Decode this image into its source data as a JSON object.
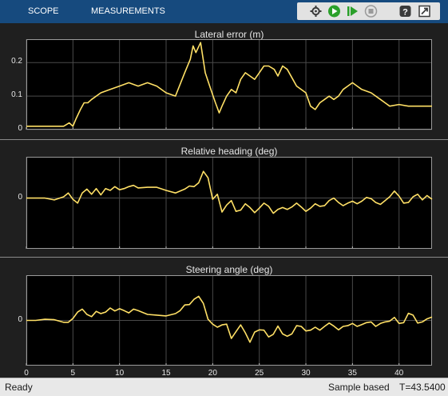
{
  "tabs": [
    "SCOPE",
    "MEASUREMENTS"
  ],
  "toolbar": {
    "buttons": [
      "settings-icon",
      "run-icon",
      "step-forward-icon",
      "stop-icon",
      "help-icon",
      "undock-icon"
    ],
    "help_glyph": "?"
  },
  "status": {
    "ready": "Ready",
    "mode": "Sample based",
    "time": "T=43.5400"
  },
  "colors": {
    "trace": "#ffe066",
    "axes_bg": "#000000",
    "grid": "#4a4a4a",
    "header": "#164a7e"
  },
  "chart_data": [
    {
      "type": "line",
      "title": "Lateral error (m)",
      "xlim": [
        0,
        43.54
      ],
      "ylim": [
        0,
        0.27
      ],
      "xticks": [
        0,
        5,
        10,
        15,
        20,
        25,
        30,
        35,
        40
      ],
      "yticks": [
        0,
        0.1,
        0.2
      ],
      "ytick_labels": [
        "0",
        "0.1",
        "0.2"
      ],
      "series": [
        {
          "x": [
            0,
            2,
            4,
            4.6,
            5,
            5.3,
            5.8,
            6.2,
            6.6,
            7,
            8,
            9,
            10,
            11,
            12,
            13,
            14,
            15,
            16,
            17,
            17.6,
            17.9,
            18.2,
            18.7,
            19.2,
            19.8,
            20.3,
            20.7,
            21,
            21.5,
            22,
            22.5,
            23,
            23.5,
            24,
            24.5,
            25,
            25.5,
            26,
            26.6,
            27,
            27.5,
            28,
            28.6,
            29,
            30,
            30.5,
            31,
            31.5,
            32,
            32.5,
            33,
            33.5,
            34,
            34.5,
            35,
            35.5,
            36,
            37,
            38,
            38.5,
            39,
            40,
            41,
            42,
            43.54
          ],
          "y": [
            0.01,
            0.01,
            0.01,
            0.02,
            0.01,
            0.03,
            0.06,
            0.08,
            0.08,
            0.09,
            0.11,
            0.12,
            0.13,
            0.14,
            0.13,
            0.14,
            0.13,
            0.11,
            0.1,
            0.17,
            0.21,
            0.25,
            0.23,
            0.26,
            0.17,
            0.12,
            0.08,
            0.05,
            0.07,
            0.1,
            0.12,
            0.11,
            0.15,
            0.17,
            0.16,
            0.15,
            0.17,
            0.19,
            0.19,
            0.18,
            0.16,
            0.19,
            0.18,
            0.15,
            0.13,
            0.11,
            0.07,
            0.06,
            0.08,
            0.09,
            0.1,
            0.09,
            0.1,
            0.12,
            0.13,
            0.14,
            0.13,
            0.12,
            0.11,
            0.09,
            0.08,
            0.07,
            0.075,
            0.07,
            0.07,
            0.07
          ]
        }
      ]
    },
    {
      "type": "line",
      "title": "Relative heading (deg)",
      "xlim": [
        0,
        43.54
      ],
      "ylim": [
        -8,
        6.5
      ],
      "xticks": [
        0,
        5,
        10,
        15,
        20,
        25,
        30,
        35,
        40
      ],
      "yticks": [
        0
      ],
      "ytick_labels": [
        "0"
      ],
      "series": [
        {
          "x": [
            0,
            1,
            2,
            3,
            4,
            4.5,
            5,
            5.5,
            6,
            6.5,
            7,
            7.5,
            8,
            8.5,
            9,
            9.5,
            10,
            10.5,
            11,
            11.5,
            12,
            13,
            14,
            15,
            16,
            17,
            17.5,
            18,
            18.5,
            19,
            19.5,
            20,
            20.5,
            21,
            21.5,
            22,
            22.5,
            23,
            23.5,
            24,
            24.5,
            25,
            25.5,
            26,
            26.5,
            27,
            27.5,
            28,
            28.5,
            29,
            29.5,
            30,
            30.5,
            31,
            31.5,
            32,
            32.5,
            33,
            33.5,
            34,
            34.5,
            35,
            35.5,
            36,
            36.5,
            37,
            37.5,
            38,
            38.5,
            39,
            39.5,
            40,
            40.5,
            41,
            41.5,
            42,
            42.5,
            43,
            43.54
          ],
          "y": [
            0,
            0,
            0,
            -0.3,
            0.2,
            0.8,
            -0.2,
            -0.8,
            0.8,
            1.4,
            0.6,
            1.5,
            0.5,
            1.5,
            1.2,
            1.8,
            1.3,
            1.5,
            1.8,
            2,
            1.6,
            1.7,
            1.7,
            1.2,
            0.8,
            1.4,
            1.9,
            1.8,
            2.4,
            4.2,
            3.2,
            -0.2,
            0.6,
            -2.2,
            -1.1,
            -0.4,
            -2.1,
            -1.9,
            -0.9,
            -1.5,
            -2.3,
            -1.6,
            -0.8,
            -1.3,
            -2.4,
            -1.8,
            -1.5,
            -1.8,
            -1.4,
            -0.8,
            -1.4,
            -2.1,
            -1.6,
            -0.9,
            -1.3,
            -1.2,
            -0.4,
            0,
            -0.7,
            -1.2,
            -0.8,
            -0.5,
            -0.9,
            -0.5,
            0.1,
            -0.1,
            -0.7,
            -1,
            -0.4,
            0.2,
            1.1,
            0.3,
            -0.8,
            -0.7,
            0.2,
            0.6,
            -0.3,
            0.4,
            -0.2
          ]
        }
      ]
    },
    {
      "type": "line",
      "title": "Steering angle (deg)",
      "xlim": [
        0,
        43.54
      ],
      "ylim": [
        -12,
        12
      ],
      "xticks": [
        0,
        5,
        10,
        15,
        20,
        25,
        30,
        35,
        40
      ],
      "xtick_labels": [
        "0",
        "5",
        "10",
        "15",
        "20",
        "25",
        "30",
        "35",
        "40"
      ],
      "yticks": [
        0
      ],
      "ytick_labels": [
        "0"
      ],
      "series": [
        {
          "x": [
            0,
            1,
            2,
            3,
            4,
            4.5,
            5,
            5.5,
            6,
            6.5,
            7,
            7.5,
            8,
            8.5,
            9,
            9.5,
            10,
            10.5,
            11,
            11.5,
            12,
            13,
            14,
            15,
            16,
            16.5,
            17,
            17.5,
            18,
            18.5,
            19,
            19.5,
            20,
            20.5,
            21,
            21.5,
            22,
            22.5,
            23,
            23.5,
            24,
            24.5,
            25,
            25.5,
            26,
            26.5,
            27,
            27.5,
            28,
            28.5,
            29,
            29.5,
            30,
            30.5,
            31,
            31.5,
            32,
            32.5,
            33,
            33.5,
            34,
            34.5,
            35,
            35.5,
            36,
            36.5,
            37,
            37.5,
            38,
            38.5,
            39,
            39.5,
            40,
            40.5,
            41,
            41.5,
            42,
            42.5,
            43,
            43.54
          ],
          "y": [
            0,
            0,
            0.3,
            0.2,
            -0.5,
            -0.5,
            0.5,
            2.2,
            3,
            1.6,
            1,
            2.4,
            1.8,
            2.2,
            3.3,
            2.5,
            3.1,
            2.6,
            2,
            3,
            2.6,
            1.6,
            1.4,
            1.2,
            1.8,
            2.6,
            4.1,
            4.2,
            5.6,
            6.4,
            4.5,
            0.3,
            -1,
            -1.8,
            -1.2,
            -1,
            -4.8,
            -3,
            -1.2,
            -3.3,
            -5.8,
            -3.1,
            -2.5,
            -2.6,
            -4.4,
            -3.7,
            -1.5,
            -3.6,
            -4.2,
            -3.6,
            -1.4,
            -1.6,
            -2.8,
            -2.6,
            -1.8,
            -2.6,
            -1.6,
            -0.7,
            -1.5,
            -2.5,
            -1.6,
            -1.4,
            -0.8,
            -1.6,
            -1.1,
            -0.6,
            -0.4,
            -1.6,
            -0.8,
            -0.4,
            -0.2,
            0.8,
            -0.8,
            -0.6,
            1.9,
            1.4,
            -0.7,
            -0.4,
            0.4,
            0.9
          ]
        }
      ]
    }
  ]
}
